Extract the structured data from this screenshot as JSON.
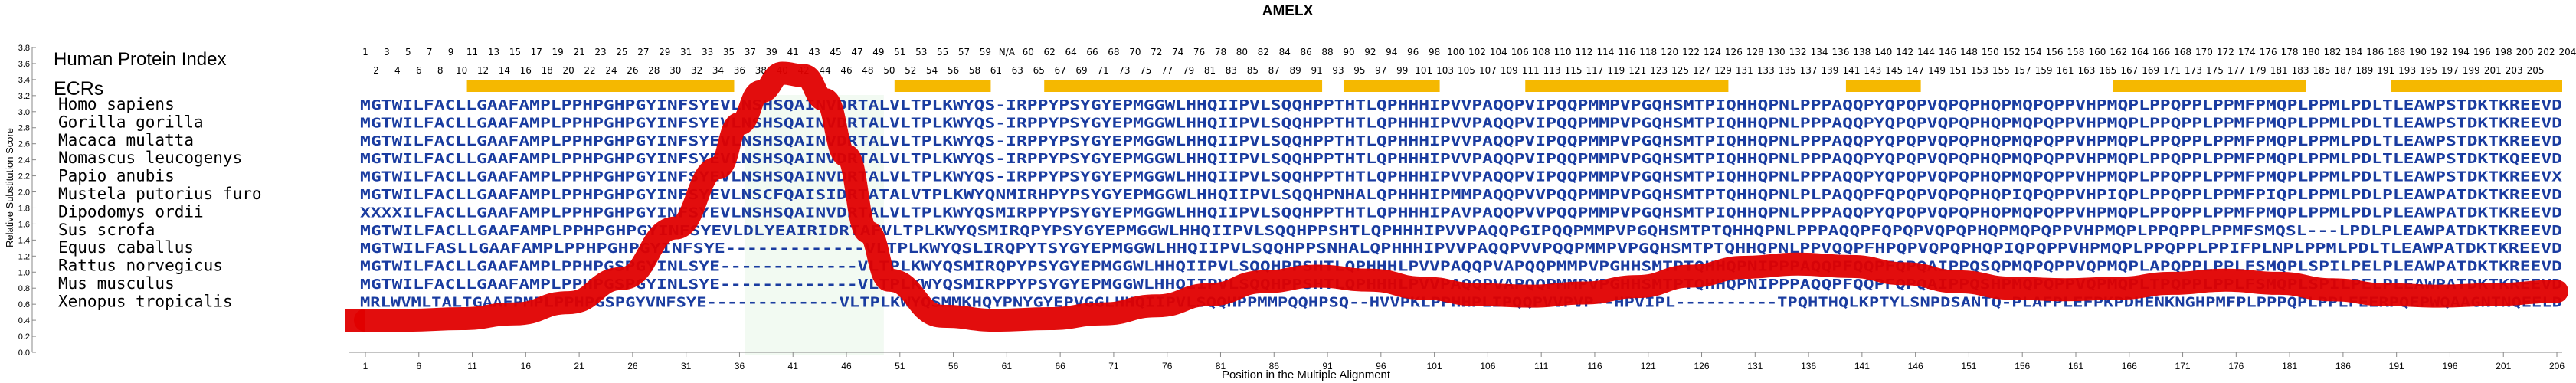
{
  "chart_data": {
    "type": "line",
    "title": "AMELX",
    "xlabel": "Position in the Multiple Alignment",
    "ylabel": "Relative Substitution Score",
    "xlim": [
      1,
      206
    ],
    "ylim": [
      0,
      3.8
    ],
    "y_ticks": [
      "0.0",
      "0.2",
      "0.4",
      "0.6",
      "0.8",
      "1.0",
      "1.2",
      "1.4",
      "1.6",
      "1.8",
      "2.0",
      "2.2",
      "2.4",
      "2.6",
      "2.8",
      "3.0",
      "3.2",
      "3.4",
      "3.6",
      "3.8"
    ],
    "x_ticks": [
      1,
      6,
      11,
      16,
      21,
      26,
      31,
      36,
      41,
      46,
      51,
      56,
      61,
      66,
      71,
      76,
      81,
      86,
      91,
      96,
      101,
      106,
      111,
      116,
      121,
      126,
      131,
      136,
      141,
      146,
      151,
      156,
      161,
      166,
      171,
      176,
      181,
      186,
      191,
      196,
      201,
      206
    ],
    "index_title": "Human Protein Index",
    "human_index_odd": [
      "1",
      "3",
      "5",
      "7",
      "9",
      "11",
      "13",
      "15",
      "17",
      "19",
      "21",
      "23",
      "25",
      "27",
      "29",
      "31",
      "33",
      "35",
      "37",
      "39",
      "41",
      "43",
      "45",
      "47",
      "49",
      "51",
      "53",
      "55",
      "57",
      "59",
      "N/A",
      "60",
      "62",
      "64",
      "66",
      "68",
      "70",
      "72",
      "74",
      "76",
      "78",
      "80",
      "82",
      "84",
      "86",
      "88",
      "90",
      "92",
      "94",
      "96",
      "98",
      "100",
      "102",
      "104",
      "106",
      "108",
      "110",
      "112",
      "114",
      "116",
      "118",
      "120",
      "122",
      "124",
      "126",
      "128",
      "130",
      "132",
      "134",
      "136",
      "138",
      "140",
      "142",
      "144",
      "146",
      "148",
      "150",
      "152",
      "154",
      "156",
      "158",
      "160",
      "162",
      "164",
      "166",
      "168",
      "170",
      "172",
      "174",
      "176",
      "178",
      "180",
      "182",
      "184",
      "186",
      "188",
      "190",
      "192",
      "194",
      "196",
      "198",
      "200",
      "202",
      "204"
    ],
    "human_index_even": [
      "2",
      "4",
      "6",
      "8",
      "10",
      "12",
      "14",
      "16",
      "18",
      "20",
      "22",
      "24",
      "26",
      "28",
      "30",
      "32",
      "34",
      "36",
      "38",
      "40",
      "42",
      "44",
      "46",
      "48",
      "50",
      "52",
      "54",
      "56",
      "58",
      "61",
      "63",
      "65",
      "67",
      "69",
      "71",
      "73",
      "75",
      "77",
      "79",
      "81",
      "83",
      "85",
      "87",
      "89",
      "91",
      "93",
      "95",
      "97",
      "99",
      "101",
      "103",
      "105",
      "107",
      "109",
      "111",
      "113",
      "115",
      "117",
      "119",
      "121",
      "123",
      "125",
      "127",
      "129",
      "131",
      "133",
      "135",
      "137",
      "139",
      "141",
      "143",
      "145",
      "147",
      "149",
      "151",
      "153",
      "155",
      "157",
      "159",
      "161",
      "163",
      "165",
      "167",
      "169",
      "171",
      "173",
      "175",
      "177",
      "179",
      "181",
      "183",
      "185",
      "187",
      "189",
      "191",
      "193",
      "195",
      "197",
      "199",
      "201",
      "203",
      "205"
    ],
    "ecr_label": "ECRs",
    "ecr_segments": [
      [
        11,
        35
      ],
      [
        51,
        59
      ],
      [
        65,
        90
      ],
      [
        93,
        101
      ],
      [
        110,
        128
      ],
      [
        140,
        146
      ],
      [
        165,
        182
      ],
      [
        191,
        206
      ]
    ],
    "conserved_region": [
      37,
      49
    ],
    "alignment": [
      {
        "species": "Homo sapiens",
        "seq": "MGTWILFACLLGAAFAMPLPPHPGHPGYINFSYEVLNSHSQAINVDRTALVLTPLKWYQS-IRPPYPSYGYEPMGGWLHHQIIPVLSQQHPPTHTLQPHHHIPVVPAQQPVIPQQPMMPVPGQHSMTPIQHHQPNLPPPAQQPYQPQPVQPQPHQPMQPQPPVHPMQPLPPQPPLPPMFPMQPLPPMLPDLTLEAWPSTDKTKREEVD"
      },
      {
        "species": "Gorilla gorilla",
        "seq": "MGTWILFACLLGAAFAMPLPPHPGHPGYINFSYEVLNSHSQAINVDRTALVLTPLKWYQS-IRPPYPSYGYEPMGGWLHHQIIPVLSQQHPPTHTLQPHHHIPVVPAQQPVIPQQPMMPVPGQHSMTPIQHHQPNLPPPAQQPYQPQPVQPQPHQPMQPQPPVHPMQPLPPQPPLPPMFPMQPLPPMLPDLTLEAWPSTDKTKREEVD"
      },
      {
        "species": "Macaca mulatta",
        "seq": "MGTWILFACLLGAAFAMPLPPHPGHPGYINFSYEVLNSHSQAINVDRTALVLTPLKWYQS-IRPPYPSYGYEPMGGWLHHQIIPVLSQQHPPTHTLQPHHHIPVVPAQQPVIPQQPMMPVPGQHSMTPIQHHQPNLPPPAQQPYQPQPVQPQPHQPMQPQPPVHPMQPLPPQPPLPPMFPMQPLPPMLPDLTLEAWPSTDKTKREEVD"
      },
      {
        "species": "Nomascus leucogenys",
        "seq": "MGTWILFACLLGAAFAMPLPPHPGHPGYINFSYEVLNSHSQAINVDRTALVLTPLKWYQS-IRPPYPSYGYEPMGGWLHHQIIPVLSQQHPPTHTLQPHHHIPVVPAQQPVIPQQPMMPVPGQHSMTPIQHHQPNLPPPAQQPYQPQPVQPQPHQPMQPQPPVHPMQPLPPQPPLPPMFPMQPLPPMLPDLTLEAWPSTDKTKQEEVD"
      },
      {
        "species": "Papio anubis",
        "seq": "MGTWILFACLLGAAFAMPLPPHPGHPGYINFSYEVLNSHSQAINVDRTALVLTPLKWYQS-IRPPYPSYGYEPMGGWLHHQIIPVLSQQHPPTHTLQPHHHIPVVPAQQPVIPQQPMMPVPGQHSMTPIQHHQPNLPPPAQQPYQPQPVQPQPHQPMQPQPPVHPMQPLPPQPPLPPMFPMQPLPPMLPDLTLEAWPSTDKTKREEVX"
      },
      {
        "species": "Mustela putorius furo",
        "seq": "MGTWILFACLLGAAFAMPLPPHPGHPGYINFSYEVLNSCFQAISIDRTATALVTPLKWYQNMIRHPYPSYGYEPMGGWLHHQIIPVLSQQHPNHALQPHHHIPMMPAQQPVVPQQPMMPVPGQHSMTPTQHHQPNLPLPAQQPFQPQPVQPQPHQPIQPQPPVHPIQPLPPQPPLPPMFPIQPLPPMLPDLPLEAWPATDKTKREEVD"
      },
      {
        "species": "Dipodomys ordii",
        "seq": "XXXXILFACLLGAAFAMPLPPHPGHPGYINFSYEVLNSHSQAINVDRTALVLTPLKWYQSMIRPPYPSYGYEPMGGWLHHQIIPVLSQQHPPTHTLQPHHHIPAVPAQQPVVPQQPMMPVPGQHSMTPIQHHQPNLPPPAQQPYQPQPVQPQPHQPMQPQPPVHPMQPLPPQPPLPPMFPMQPLPPMLPDLPLEAWPATDKTKREEVD"
      },
      {
        "species": "Sus scrofa",
        "seq": "MGTWILFACLLGAAFAMPLPPHPGHPGYINFSYEVLDLYEAIRIDRTAFVLTPLKWYQSMIRQPYPSYGYEPMGGWLHHQIIPVLSQQHPPSHTLQPHHHIPVVPAQQPGIPQQPMMPVPGQHSMTPTQHHQPNLPPPAQQPFQPQPVQPQPHQPMQPQPPVHPMQPLPPQPPLPPMFSMQSL---LPDLPLEAWPATDKTKREEVD"
      },
      {
        "species": "Equus caballus",
        "seq": "MGTWILFASLLGAAFAMPLPPHPGHPGYINFSYE-------------VLTPLKWYQSLIRQPYTSYGYEPMGGWLHHQIIPVLSQQHPPSNHALQPHHHIPVVPAQQPVVPQQPMMPVPGQHSMTPTQHHQPNLPPVQQPFHPQPVQPQPHQPIQPQPPVHPMQPLPPQPPLPPIFPLNPLPPMLPDLTLEAWPATDKTKREEVD"
      },
      {
        "species": "Rattus norvegicus",
        "seq": "MGTWILFACLLGAAFAMPLPPHPGSPGYINLSYE-------------VLTPLKWYQSMIRQPYPSYGYEPMGGWLHHQIIPVLSQQHPPSHTLQPHHHLPVVPAQQPVAPQQPMMPVPGHHSMTPTQHHQPNIPPPAQQPFQQPFQPQAIPPQSQPMQPQPPVQPMQPLAPQPPLPPLFSMQPLSPILPELPLEAWPATDKTKREEVD"
      },
      {
        "species": "Mus musculus",
        "seq": "MGTWILFACLLGAAFAMPLPPHPGSPGYINLSYE-------------VLTPLKWYQSMIRPPYPSYGYEPMGGWLHHQIIPVLSQQHPPSHTLQPHHHLPVVPAQQPVAPQQPMMPVPGHHSMTPTQHHQPNIPPPAQQPFQQPFQPQAIPPQSHPMQPQPPVQPMQPLTPQPPLPPLFSMQPLSPILPELPLEAWPATDKTKREEVD"
      },
      {
        "species": "Xenopus tropicalis",
        "seq": "MRLWVMLTALTGAAFPMPLPPHPGSPGYVNFSYE-------------VLTPLKWYQSMMKHQYPNYGYEPVGGLHHQIIPVLSQQHPPMMPQQHPSQ--HVVPKLPPHHPLIPQQPVVPVP--HPVIPL----------TPQHTHQLKPTYLSNPDSANTQ-PLAFPLEFPKPDHENKNGHPMFPLPPPQPLPPLFEERPQEPWQAAGNTNQEELD"
      }
    ],
    "series": [
      {
        "name": "Relative Substitution Score",
        "color": "#e00000",
        "x": [
          1,
          5,
          10,
          15,
          20,
          25,
          30,
          34,
          36,
          38,
          40,
          42,
          44,
          46,
          48,
          50,
          55,
          60,
          65,
          70,
          75,
          80,
          85,
          90,
          95,
          100,
          105,
          110,
          115,
          120,
          125,
          130,
          135,
          140,
          145,
          150,
          155,
          160,
          165,
          170,
          175,
          180,
          185,
          190,
          195,
          200,
          206
        ],
        "y": [
          0.4,
          0.4,
          0.42,
          0.48,
          0.62,
          0.92,
          1.55,
          2.3,
          2.85,
          3.25,
          3.48,
          3.45,
          3.15,
          2.45,
          1.5,
          0.9,
          0.45,
          0.4,
          0.42,
          0.48,
          0.58,
          0.72,
          0.88,
          0.95,
          0.9,
          0.8,
          0.72,
          0.7,
          0.74,
          0.82,
          0.95,
          1.06,
          1.1,
          1.07,
          0.98,
          0.88,
          0.8,
          0.78,
          0.8,
          0.86,
          0.9,
          0.86,
          0.78,
          0.72,
          0.7,
          0.72,
          0.76
        ]
      }
    ],
    "grid": false,
    "legend": "none"
  }
}
